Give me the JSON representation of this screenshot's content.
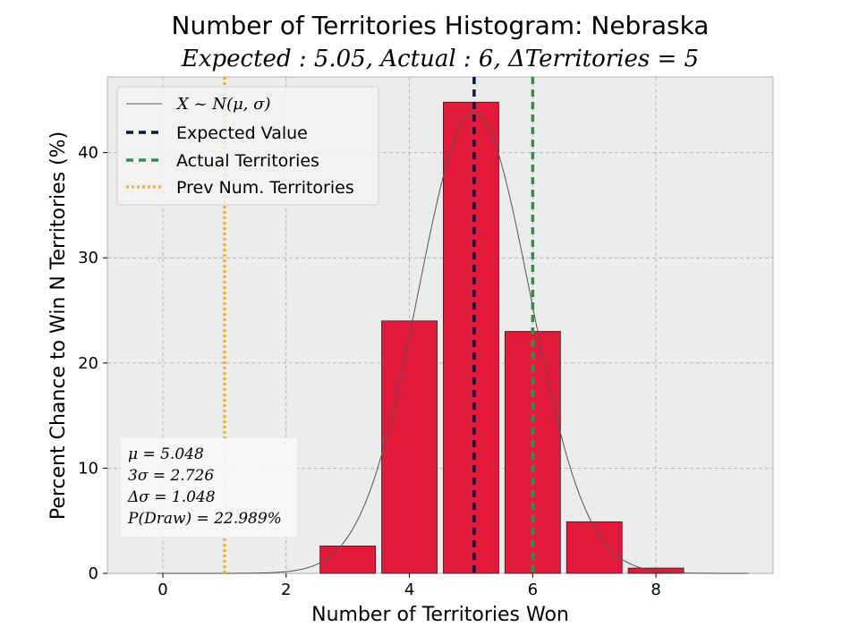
{
  "chart_data": {
    "type": "bar",
    "title": "Number of Territories Histogram: Nebraska",
    "subtitle": "Expected : 5.05, Actual : 6, ΔTerritories = 5",
    "xlabel": "Number of Territories Won",
    "ylabel": "Percent Chance to Win N Territories (%)",
    "xlim": [
      -0.9,
      9.9
    ],
    "ylim": [
      0,
      47.2
    ],
    "xticks": [
      0,
      2,
      4,
      6,
      8
    ],
    "yticks": [
      0,
      10,
      20,
      30,
      40
    ],
    "grid": true,
    "categories": [
      3,
      4,
      5,
      6,
      7,
      8
    ],
    "values": [
      2.6,
      24.0,
      44.8,
      23.0,
      4.9,
      0.5
    ],
    "bar_color": "#e31a3a",
    "normal_curve": {
      "label": "X ~ N(μ, σ)",
      "mu": 5.048,
      "sigma": 0.909,
      "color": "#555555"
    },
    "vlines": [
      {
        "label": "Expected Value",
        "x": 5.05,
        "color": "#0d1640",
        "style": "dashed"
      },
      {
        "label": "Actual Territories",
        "x": 6,
        "color": "#3a8a4a",
        "style": "dashed"
      },
      {
        "label": "Prev Num. Territories",
        "x": 1,
        "color": "#ffb020",
        "style": "dotted"
      }
    ],
    "legend_position": "top-left",
    "stats": [
      "μ = 5.048",
      "3σ = 2.726",
      "Δσ = 1.048",
      "P(Draw) = 22.989%"
    ],
    "stats_position": "bottom-left"
  }
}
